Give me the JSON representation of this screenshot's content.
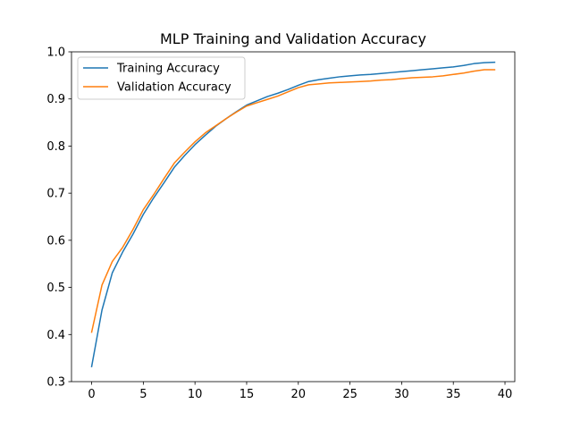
{
  "chart_data": {
    "type": "line",
    "title": "MLP Training and Validation Accuracy",
    "xlabel": "",
    "ylabel": "",
    "xlim": [
      -1.95,
      40.95
    ],
    "ylim": [
      0.3,
      1.0
    ],
    "xticks": [
      0,
      5,
      10,
      15,
      20,
      25,
      30,
      35,
      40
    ],
    "yticks": [
      0.3,
      0.4,
      0.5,
      0.6,
      0.7,
      0.8,
      0.9,
      1.0
    ],
    "grid": false,
    "legend_position": "top-left",
    "x": [
      0,
      1,
      2,
      3,
      4,
      5,
      6,
      7,
      8,
      9,
      10,
      11,
      12,
      13,
      14,
      15,
      16,
      17,
      18,
      19,
      20,
      21,
      22,
      23,
      24,
      25,
      26,
      27,
      28,
      29,
      30,
      31,
      32,
      33,
      34,
      35,
      36,
      37,
      38,
      39
    ],
    "series": [
      {
        "name": "Training Accuracy",
        "color": "#1f77b4",
        "values": [
          0.332,
          0.452,
          0.531,
          0.575,
          0.613,
          0.655,
          0.69,
          0.722,
          0.755,
          0.78,
          0.803,
          0.823,
          0.842,
          0.858,
          0.873,
          0.887,
          0.896,
          0.905,
          0.912,
          0.92,
          0.929,
          0.937,
          0.941,
          0.944,
          0.947,
          0.949,
          0.951,
          0.952,
          0.954,
          0.956,
          0.958,
          0.96,
          0.962,
          0.964,
          0.966,
          0.968,
          0.971,
          0.975,
          0.977,
          0.978
        ]
      },
      {
        "name": "Validation Accuracy",
        "color": "#ff7f0e",
        "values": [
          0.405,
          0.505,
          0.555,
          0.585,
          0.623,
          0.665,
          0.697,
          0.731,
          0.764,
          0.787,
          0.809,
          0.828,
          0.843,
          0.858,
          0.872,
          0.885,
          0.892,
          0.899,
          0.906,
          0.915,
          0.924,
          0.93,
          0.932,
          0.934,
          0.935,
          0.936,
          0.937,
          0.938,
          0.94,
          0.941,
          0.943,
          0.945,
          0.946,
          0.947,
          0.949,
          0.952,
          0.955,
          0.959,
          0.962,
          0.962
        ]
      }
    ]
  }
}
